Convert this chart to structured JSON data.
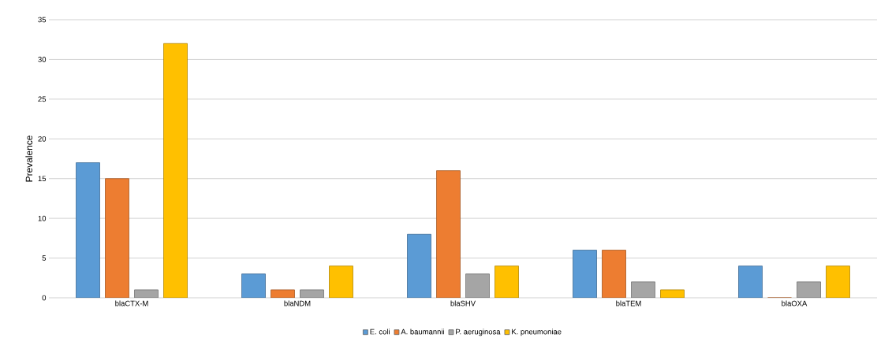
{
  "chart_data": {
    "type": "bar",
    "ylabel": "Prevalence",
    "categories": [
      "blaCTX-M",
      "blaNDM",
      "blaSHV",
      "blaTEM",
      "blaOXA"
    ],
    "series": [
      {
        "name": "E. coli",
        "color": "#5b9bd5",
        "values": [
          17,
          3,
          8,
          6,
          4
        ]
      },
      {
        "name": "A. baumannii",
        "color": "#ed7d31",
        "values": [
          15,
          1,
          16,
          6,
          0
        ]
      },
      {
        "name": "P. aeruginosa",
        "color": "#a5a5a5",
        "values": [
          1,
          1,
          3,
          2,
          2
        ]
      },
      {
        "name": "K. pneumoniae",
        "color": "#ffc000",
        "values": [
          32,
          4,
          4,
          1,
          4
        ]
      }
    ],
    "ylim": [
      0,
      35
    ],
    "yticks": [
      0,
      5,
      10,
      15,
      20,
      25,
      30,
      35
    ],
    "grid": "y",
    "legend": "bottom"
  }
}
